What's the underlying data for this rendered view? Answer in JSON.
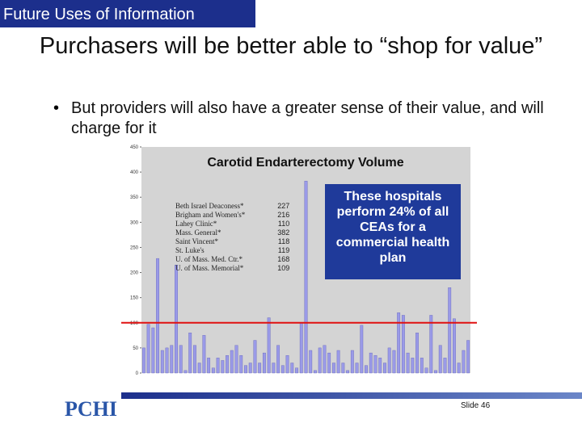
{
  "header": {
    "label": "Future Uses of Information"
  },
  "title": "Purchasers will be better able to “shop for value”",
  "bullet": "But providers will also have a greater sense of their value, and will charge for it",
  "chart": {
    "type": "bar",
    "title": "Carotid Endarterectomy Volume",
    "values": [
      50,
      97,
      90,
      228,
      45,
      50,
      55,
      215,
      55,
      5,
      80,
      55,
      20,
      75,
      30,
      10,
      30,
      25,
      35,
      45,
      55,
      35,
      15,
      20,
      65,
      20,
      40,
      110,
      20,
      55,
      15,
      35,
      20,
      10,
      100,
      382,
      45,
      5,
      50,
      55,
      40,
      20,
      45,
      20,
      5,
      45,
      20,
      95,
      15,
      40,
      35,
      30,
      20,
      50,
      45,
      120,
      115,
      40,
      30,
      80,
      30,
      10,
      115,
      5,
      55,
      30,
      170,
      108,
      20,
      45,
      65
    ],
    "color": "#9a9ae8",
    "ylim": [
      0,
      450
    ],
    "yticks": [
      0,
      50,
      100,
      150,
      200,
      250,
      300,
      350,
      400,
      450
    ],
    "reference_line": 100,
    "reference_color": "#e01010"
  },
  "table": {
    "rows": [
      [
        "Beth Israel Deaconess*",
        227
      ],
      [
        "Brigham and Women's*",
        216
      ],
      [
        "Lahey Clinic*",
        110
      ],
      [
        "Mass. General*",
        382
      ],
      [
        "Saint Vincent*",
        118
      ],
      [
        "St. Luke's",
        119
      ],
      [
        "U. of Mass. Med. Ctr.*",
        168
      ],
      [
        "U. of Mass. Memorial*",
        109
      ]
    ]
  },
  "callout": "These hospitals perform 24% of all CEAs for a commercial health plan",
  "footer": {
    "logo": "PCHI",
    "slide": "Slide 46"
  }
}
